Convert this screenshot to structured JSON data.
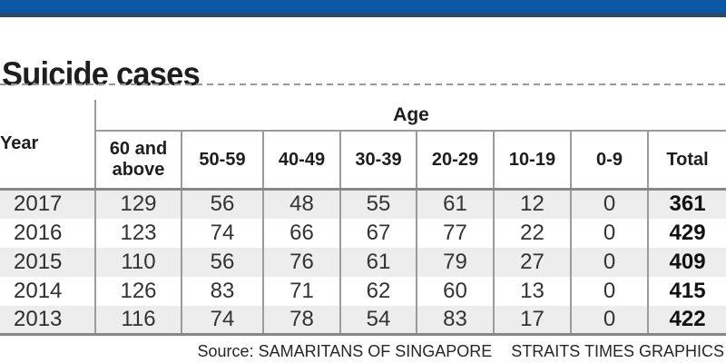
{
  "page": {
    "title": "Suicide cases",
    "source_label": "Source: SAMARITANS OF SINGAPORE",
    "credit_label": "STRAITS TIMES GRAPHICS"
  },
  "colors": {
    "top_bar_blue": "#0b58a5",
    "top_bar_dark_edge": "#29496e",
    "alt_row_gray": "#ededed",
    "thin_border_gray": "#9b9b9b",
    "thick_border_gray": "#878787",
    "text_black": "#1e1e1e"
  },
  "chart_data": {
    "type": "table",
    "title": "Suicide cases",
    "row_header_label": "Year",
    "column_group_label": "Age",
    "age_columns": [
      "60 and above",
      "50-59",
      "40-49",
      "30-39",
      "20-29",
      "10-19",
      "0-9"
    ],
    "total_label": "Total",
    "rows": [
      {
        "year": "2017",
        "values": [
          129,
          56,
          48,
          55,
          61,
          12,
          0
        ],
        "total": 361
      },
      {
        "year": "2016",
        "values": [
          123,
          74,
          66,
          67,
          77,
          22,
          0
        ],
        "total": 429
      },
      {
        "year": "2015",
        "values": [
          110,
          56,
          76,
          61,
          79,
          27,
          0
        ],
        "total": 409
      },
      {
        "year": "2014",
        "values": [
          126,
          83,
          71,
          62,
          60,
          13,
          0
        ],
        "total": 415
      },
      {
        "year": "2013",
        "values": [
          116,
          74,
          78,
          54,
          83,
          17,
          0
        ],
        "total": 422
      }
    ],
    "source": "Source: SAMARITANS OF SINGAPORE",
    "credit": "STRAITS TIMES GRAPHICS"
  }
}
